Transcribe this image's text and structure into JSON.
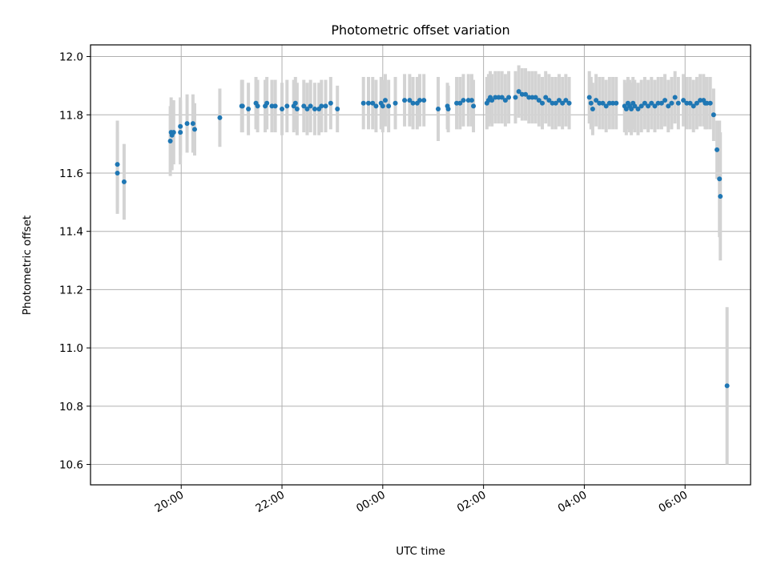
{
  "chart_data": {
    "type": "scatter",
    "title": "Photometric offset variation",
    "xlabel": "UTC time",
    "ylabel": "Photometric offset",
    "grid": true,
    "x_unit": "UTC time (HH:MM)",
    "xlim": [
      "18:12",
      "07:18"
    ],
    "ylim": [
      10.53,
      12.04
    ],
    "x_ticks": [
      "20:00",
      "22:00",
      "00:00",
      "02:00",
      "04:00",
      "06:00"
    ],
    "y_ticks": [
      "10.6",
      "10.8",
      "11.0",
      "11.2",
      "11.4",
      "11.6",
      "11.8",
      "12.0"
    ],
    "colors": {
      "points": "#1f77b4",
      "errorbars": "#d3d3d3",
      "grid": "#b0b0b0"
    },
    "series": [
      {
        "points": [
          {
            "x": "18:44",
            "y": 11.63,
            "err": 0.15
          },
          {
            "x": "18:44",
            "y": 11.6,
            "err": 0.14
          },
          {
            "x": "18:52",
            "y": 11.57,
            "err": 0.13
          },
          {
            "x": "19:47",
            "y": 11.71,
            "err": 0.12
          },
          {
            "x": "19:48",
            "y": 11.74,
            "err": 0.12
          },
          {
            "x": "19:49",
            "y": 11.73,
            "err": 0.12
          },
          {
            "x": "19:51",
            "y": 11.74,
            "err": 0.11
          },
          {
            "x": "19:59",
            "y": 11.74,
            "err": 0.11
          },
          {
            "x": "19:59",
            "y": 11.76,
            "err": 0.1
          },
          {
            "x": "20:07",
            "y": 11.77,
            "err": 0.1
          },
          {
            "x": "20:14",
            "y": 11.77,
            "err": 0.1
          },
          {
            "x": "20:16",
            "y": 11.75,
            "err": 0.09
          },
          {
            "x": "20:46",
            "y": 11.79,
            "err": 0.1
          },
          {
            "x": "21:12",
            "y": 11.83,
            "err": 0.09
          },
          {
            "x": "21:13",
            "y": 11.83,
            "err": 0.09
          },
          {
            "x": "21:20",
            "y": 11.82,
            "err": 0.09
          },
          {
            "x": "21:29",
            "y": 11.84,
            "err": 0.09
          },
          {
            "x": "21:31",
            "y": 11.83,
            "err": 0.09
          },
          {
            "x": "21:40",
            "y": 11.83,
            "err": 0.09
          },
          {
            "x": "21:42",
            "y": 11.84,
            "err": 0.09
          },
          {
            "x": "21:48",
            "y": 11.83,
            "err": 0.09
          },
          {
            "x": "21:52",
            "y": 11.83,
            "err": 0.09
          },
          {
            "x": "22:00",
            "y": 11.82,
            "err": 0.09
          },
          {
            "x": "22:06",
            "y": 11.83,
            "err": 0.09
          },
          {
            "x": "22:14",
            "y": 11.83,
            "err": 0.09
          },
          {
            "x": "22:16",
            "y": 11.84,
            "err": 0.09
          },
          {
            "x": "22:18",
            "y": 11.82,
            "err": 0.09
          },
          {
            "x": "22:26",
            "y": 11.83,
            "err": 0.09
          },
          {
            "x": "22:30",
            "y": 11.82,
            "err": 0.09
          },
          {
            "x": "22:34",
            "y": 11.83,
            "err": 0.09
          },
          {
            "x": "22:39",
            "y": 11.82,
            "err": 0.09
          },
          {
            "x": "22:44",
            "y": 11.82,
            "err": 0.09
          },
          {
            "x": "22:47",
            "y": 11.83,
            "err": 0.09
          },
          {
            "x": "22:52",
            "y": 11.83,
            "err": 0.09
          },
          {
            "x": "22:58",
            "y": 11.84,
            "err": 0.09
          },
          {
            "x": "23:06",
            "y": 11.82,
            "err": 0.08
          },
          {
            "x": "23:37",
            "y": 11.84,
            "err": 0.09
          },
          {
            "x": "23:43",
            "y": 11.84,
            "err": 0.09
          },
          {
            "x": "23:48",
            "y": 11.84,
            "err": 0.09
          },
          {
            "x": "23:52",
            "y": 11.83,
            "err": 0.09
          },
          {
            "x": "23:58",
            "y": 11.84,
            "err": 0.09
          },
          {
            "x": "00:00",
            "y": 11.83,
            "err": 0.09
          },
          {
            "x": "00:03",
            "y": 11.85,
            "err": 0.09
          },
          {
            "x": "00:07",
            "y": 11.83,
            "err": 0.09
          },
          {
            "x": "00:15",
            "y": 11.84,
            "err": 0.09
          },
          {
            "x": "00:26",
            "y": 11.85,
            "err": 0.09
          },
          {
            "x": "00:32",
            "y": 11.85,
            "err": 0.09
          },
          {
            "x": "00:36",
            "y": 11.84,
            "err": 0.09
          },
          {
            "x": "00:41",
            "y": 11.84,
            "err": 0.09
          },
          {
            "x": "00:44",
            "y": 11.85,
            "err": 0.09
          },
          {
            "x": "00:49",
            "y": 11.85,
            "err": 0.09
          },
          {
            "x": "01:06",
            "y": 11.82,
            "err": 0.11
          },
          {
            "x": "01:17",
            "y": 11.83,
            "err": 0.08
          },
          {
            "x": "01:18",
            "y": 11.82,
            "err": 0.08
          },
          {
            "x": "01:28",
            "y": 11.84,
            "err": 0.09
          },
          {
            "x": "01:32",
            "y": 11.84,
            "err": 0.09
          },
          {
            "x": "01:36",
            "y": 11.85,
            "err": 0.09
          },
          {
            "x": "01:42",
            "y": 11.85,
            "err": 0.09
          },
          {
            "x": "01:46",
            "y": 11.85,
            "err": 0.09
          },
          {
            "x": "01:48",
            "y": 11.83,
            "err": 0.09
          },
          {
            "x": "02:04",
            "y": 11.84,
            "err": 0.09
          },
          {
            "x": "02:06",
            "y": 11.85,
            "err": 0.09
          },
          {
            "x": "02:08",
            "y": 11.86,
            "err": 0.09
          },
          {
            "x": "02:10",
            "y": 11.85,
            "err": 0.09
          },
          {
            "x": "02:14",
            "y": 11.86,
            "err": 0.09
          },
          {
            "x": "02:18",
            "y": 11.86,
            "err": 0.09
          },
          {
            "x": "02:22",
            "y": 11.86,
            "err": 0.09
          },
          {
            "x": "02:26",
            "y": 11.85,
            "err": 0.09
          },
          {
            "x": "02:30",
            "y": 11.86,
            "err": 0.09
          },
          {
            "x": "02:38",
            "y": 11.86,
            "err": 0.09
          },
          {
            "x": "02:42",
            "y": 11.88,
            "err": 0.09
          },
          {
            "x": "02:46",
            "y": 11.87,
            "err": 0.09
          },
          {
            "x": "02:50",
            "y": 11.87,
            "err": 0.09
          },
          {
            "x": "02:54",
            "y": 11.86,
            "err": 0.09
          },
          {
            "x": "02:58",
            "y": 11.86,
            "err": 0.09
          },
          {
            "x": "03:02",
            "y": 11.86,
            "err": 0.09
          },
          {
            "x": "03:06",
            "y": 11.85,
            "err": 0.09
          },
          {
            "x": "03:10",
            "y": 11.84,
            "err": 0.09
          },
          {
            "x": "03:14",
            "y": 11.86,
            "err": 0.09
          },
          {
            "x": "03:18",
            "y": 11.85,
            "err": 0.09
          },
          {
            "x": "03:22",
            "y": 11.84,
            "err": 0.09
          },
          {
            "x": "03:26",
            "y": 11.84,
            "err": 0.09
          },
          {
            "x": "03:30",
            "y": 11.85,
            "err": 0.09
          },
          {
            "x": "03:34",
            "y": 11.84,
            "err": 0.09
          },
          {
            "x": "03:38",
            "y": 11.85,
            "err": 0.09
          },
          {
            "x": "03:42",
            "y": 11.84,
            "err": 0.09
          },
          {
            "x": "04:06",
            "y": 11.86,
            "err": 0.09
          },
          {
            "x": "04:08",
            "y": 11.84,
            "err": 0.09
          },
          {
            "x": "04:10",
            "y": 11.82,
            "err": 0.09
          },
          {
            "x": "04:14",
            "y": 11.85,
            "err": 0.09
          },
          {
            "x": "04:18",
            "y": 11.84,
            "err": 0.09
          },
          {
            "x": "04:22",
            "y": 11.84,
            "err": 0.09
          },
          {
            "x": "04:26",
            "y": 11.83,
            "err": 0.09
          },
          {
            "x": "04:30",
            "y": 11.84,
            "err": 0.09
          },
          {
            "x": "04:34",
            "y": 11.84,
            "err": 0.09
          },
          {
            "x": "04:38",
            "y": 11.84,
            "err": 0.09
          },
          {
            "x": "04:48",
            "y": 11.83,
            "err": 0.09
          },
          {
            "x": "04:50",
            "y": 11.82,
            "err": 0.09
          },
          {
            "x": "04:52",
            "y": 11.84,
            "err": 0.09
          },
          {
            "x": "04:54",
            "y": 11.83,
            "err": 0.09
          },
          {
            "x": "04:56",
            "y": 11.82,
            "err": 0.09
          },
          {
            "x": "04:58",
            "y": 11.84,
            "err": 0.09
          },
          {
            "x": "05:00",
            "y": 11.83,
            "err": 0.09
          },
          {
            "x": "05:04",
            "y": 11.82,
            "err": 0.09
          },
          {
            "x": "05:08",
            "y": 11.83,
            "err": 0.09
          },
          {
            "x": "05:12",
            "y": 11.84,
            "err": 0.09
          },
          {
            "x": "05:16",
            "y": 11.83,
            "err": 0.09
          },
          {
            "x": "05:20",
            "y": 11.84,
            "err": 0.09
          },
          {
            "x": "05:24",
            "y": 11.83,
            "err": 0.09
          },
          {
            "x": "05:28",
            "y": 11.84,
            "err": 0.09
          },
          {
            "x": "05:32",
            "y": 11.84,
            "err": 0.09
          },
          {
            "x": "05:36",
            "y": 11.85,
            "err": 0.09
          },
          {
            "x": "05:40",
            "y": 11.83,
            "err": 0.09
          },
          {
            "x": "05:44",
            "y": 11.84,
            "err": 0.09
          },
          {
            "x": "05:48",
            "y": 11.86,
            "err": 0.09
          },
          {
            "x": "05:52",
            "y": 11.84,
            "err": 0.09
          },
          {
            "x": "05:58",
            "y": 11.85,
            "err": 0.09
          },
          {
            "x": "06:02",
            "y": 11.84,
            "err": 0.09
          },
          {
            "x": "06:06",
            "y": 11.84,
            "err": 0.09
          },
          {
            "x": "06:10",
            "y": 11.83,
            "err": 0.09
          },
          {
            "x": "06:14",
            "y": 11.84,
            "err": 0.09
          },
          {
            "x": "06:18",
            "y": 11.85,
            "err": 0.09
          },
          {
            "x": "06:22",
            "y": 11.85,
            "err": 0.09
          },
          {
            "x": "06:24",
            "y": 11.84,
            "err": 0.09
          },
          {
            "x": "06:26",
            "y": 11.84,
            "err": 0.09
          },
          {
            "x": "06:30",
            "y": 11.84,
            "err": 0.09
          },
          {
            "x": "06:34",
            "y": 11.8,
            "err": 0.09
          },
          {
            "x": "06:38",
            "y": 11.68,
            "err": 0.1
          },
          {
            "x": "06:41",
            "y": 11.58,
            "err": 0.2
          },
          {
            "x": "06:42",
            "y": 11.52,
            "err": 0.22
          },
          {
            "x": "06:50",
            "y": 10.87,
            "err": 0.27
          }
        ]
      }
    ]
  }
}
